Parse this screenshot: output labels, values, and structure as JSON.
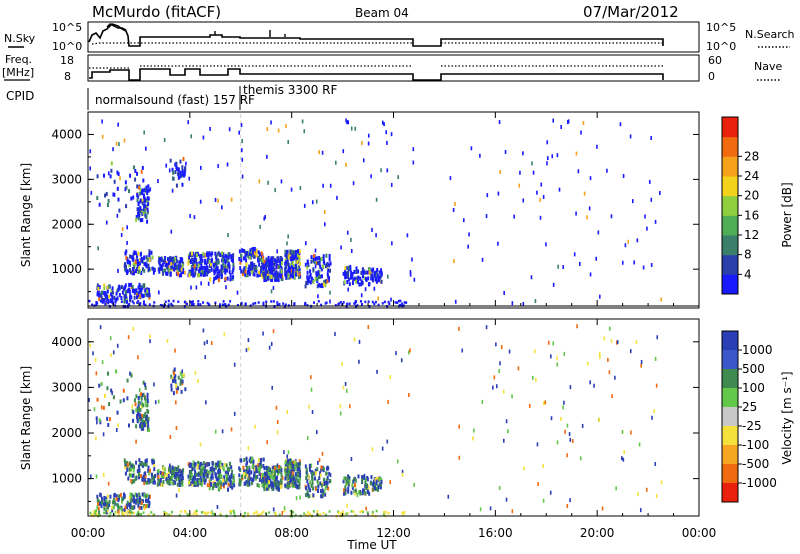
{
  "header": {
    "station": "McMurdo (fitACF)",
    "beam": "Beam 04",
    "date": "07/Mar/2012"
  },
  "top_panels": {
    "nsky_label": "N.Sky",
    "nsky_ticks": [
      "10^5",
      "10^0"
    ],
    "nsearch_label": "N.Search",
    "freq_label_1": "Freq.",
    "freq_label_2": "[MHz]",
    "freq_ticks": [
      "18",
      "8"
    ],
    "nave_label": "Nave",
    "nave_ticks": [
      "60",
      "0"
    ],
    "cpid_label": "CPID",
    "cpid_entries": [
      "normalsound (fast) 157 RF",
      "themis 3300 RF"
    ]
  },
  "colors": {
    "power_scale": [
      "#1a1aff",
      "#2b3faa",
      "#3a7f6a",
      "#4fae55",
      "#8fcf3f",
      "#f2d21b",
      "#f5a11a",
      "#f06a10",
      "#e8200c"
    ],
    "velocity_scale": [
      "#2a3fb5",
      "#3c58c8",
      "#3f8a4f",
      "#63c84a",
      "#c8c8c8",
      "#f5e13c",
      "#f6a623",
      "#f06a10",
      "#e8200c"
    ]
  },
  "chart_data": [
    {
      "type": "heatmap",
      "title": "Power",
      "ylabel": "Slant Range [km]",
      "xlabel": "Time UT",
      "xlim": [
        "00:00",
        "24:00"
      ],
      "ylim": [
        180,
        4500
      ],
      "y_ticks": [
        "1000",
        "2000",
        "3000",
        "4000"
      ],
      "x_ticks": [
        "00:00",
        "04:00",
        "08:00",
        "12:00",
        "16:00",
        "20:00",
        "00:00"
      ],
      "colorbar_label": "Power [dB]",
      "colorbar_ticks": [
        "4",
        "8",
        "12",
        "16",
        "20",
        "24",
        "28"
      ],
      "data_gap_hours": [
        [
          12.9,
          14.0
        ]
      ]
    },
    {
      "type": "heatmap",
      "title": "Velocity",
      "ylabel": "Slant Range [km]",
      "xlabel": "Time UT",
      "xlim": [
        "00:00",
        "24:00"
      ],
      "ylim": [
        180,
        4500
      ],
      "y_ticks": [
        "1000",
        "2000",
        "3000",
        "4000"
      ],
      "x_ticks": [
        "00:00",
        "04:00",
        "08:00",
        "12:00",
        "16:00",
        "20:00",
        "00:00"
      ],
      "colorbar_label": "Velocity [m s⁻¹]",
      "colorbar_ticks": [
        "1000",
        "500",
        "100",
        "25",
        "-25",
        "-100",
        "-500",
        "-1000"
      ],
      "data_gap_hours": [
        [
          12.9,
          14.0
        ]
      ]
    }
  ],
  "x_axis": {
    "title": "Time UT"
  }
}
